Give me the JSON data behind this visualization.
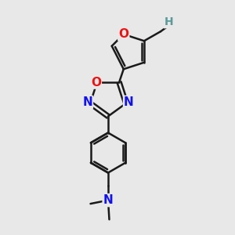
{
  "bg_color": "#e8e8e8",
  "bond_color": "#1a1a1a",
  "bond_width": 1.8,
  "atom_colors": {
    "O": "#ee1111",
    "N": "#1111ee",
    "C": "#1a1a1a",
    "H": "#4a9090"
  },
  "fig_width": 3.0,
  "fig_height": 3.0,
  "dpi": 100
}
